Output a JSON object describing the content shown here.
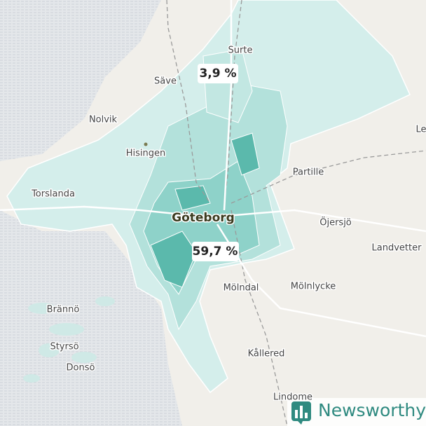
{
  "places": [
    "Surte",
    "Säve",
    "Nolvik",
    "Hisingen",
    "Torslanda",
    "Partille",
    "Göteborg",
    "Öjersjö",
    "Landvetter",
    "Mölndal",
    "Mölnlycke",
    "Brännö",
    "Styrsö",
    "Donsö",
    "Kållered",
    "Lindome",
    "Le"
  ],
  "callouts": [
    "3,9 %",
    "59,7 %"
  ],
  "logo": {
    "text": "Newsworthy"
  }
}
